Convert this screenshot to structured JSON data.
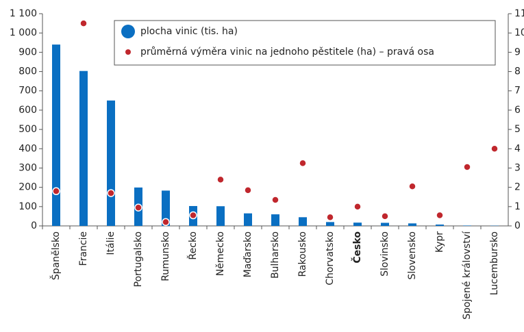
{
  "chart_data": {
    "type": "bar",
    "categories": [
      "Španělsko",
      "Francie",
      "Itálie",
      "Portugalsko",
      "Rumunsko",
      "Řecko",
      "Německo",
      "Maďarsko",
      "Bulharsko",
      "Rakousko",
      "Chorvatsko",
      "Česko",
      "Slovinsko",
      "Slovensko",
      "Kypr",
      "Spojené království",
      "Lucembursko"
    ],
    "highlight_category": "Česko",
    "series": [
      {
        "name": "plocha vinic (tis. ha)",
        "color": "#0a6fc2",
        "type": "bar",
        "values": [
          940,
          803,
          650,
          199,
          183,
          103,
          102,
          65,
          60,
          45,
          20,
          17,
          16,
          13,
          7,
          2,
          1.3
        ]
      },
      {
        "name": "průměrná výměra vinic na jednoho pěstitele (ha) – pravá osa",
        "color": "#c0272d",
        "type": "scatter",
        "axis": "y2",
        "values": [
          1.8,
          10.5,
          1.7,
          0.95,
          0.2,
          0.55,
          2.4,
          1.85,
          1.35,
          3.25,
          0.45,
          1.0,
          0.5,
          2.05,
          0.55,
          3.05,
          4.0
        ]
      }
    ],
    "ylim": [
      0,
      1100
    ],
    "yticks": [
      0,
      100,
      200,
      300,
      400,
      500,
      600,
      700,
      800,
      900,
      {
        "value": 1000,
        "label": "1 000"
      },
      {
        "value": 1100,
        "label": "1 100"
      }
    ],
    "y2lim": [
      0,
      11
    ],
    "y2ticks": [
      0,
      1,
      2,
      3,
      4,
      5,
      6,
      7,
      8,
      9,
      10,
      11
    ],
    "legend": "top-right"
  }
}
